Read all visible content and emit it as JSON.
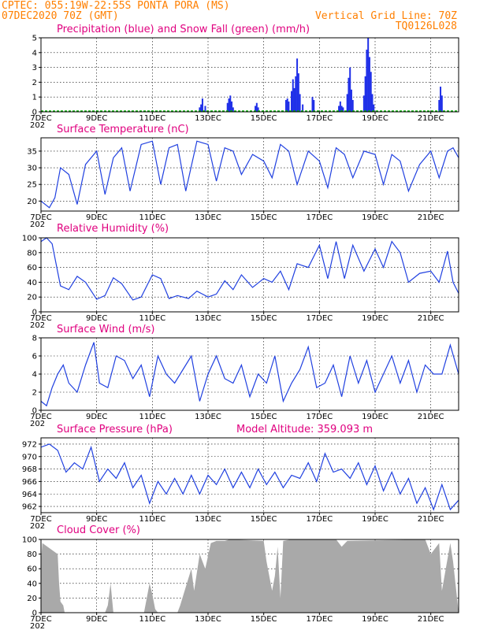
{
  "header": {
    "line1_left": "CPTEC:   055:19W-22:55S  PONTA PORA (MS)",
    "line2_left": "07DEC2020 70Z (GMT)",
    "line2_right": "Vertical Grid Line: 70Z",
    "line3_right": "TQ0126L028"
  },
  "colors": {
    "header": "#ff7f00",
    "title": "#e0007f",
    "line": "#2040e0",
    "bar": "#2030e8",
    "snow": "#00b000",
    "cloud": "#a9a9a9"
  },
  "x_axis": {
    "ticks": [
      "7DEC",
      "9DEC",
      "11DEC",
      "13DEC",
      "15DEC",
      "17DEC",
      "19DEC",
      "21DEC"
    ],
    "start_label_fragment": "202"
  },
  "chart_data": [
    {
      "type": "bar",
      "title": "Precipitation (blue) and Snow Fall (green) (mm/h)",
      "ylim": [
        0,
        5
      ],
      "yticks": [
        "0",
        "1",
        "2",
        "3",
        "4",
        "5"
      ],
      "series": [
        {
          "name": "Precipitation",
          "x": [
            12.7,
            12.75,
            12.8,
            12.9,
            13.7,
            13.75,
            13.8,
            13.85,
            13.9,
            14.7,
            14.75,
            14.8,
            15.8,
            15.85,
            15.9,
            16.0,
            16.05,
            16.1,
            16.15,
            16.2,
            16.25,
            16.3,
            16.4,
            16.75,
            16.8,
            17.7,
            17.75,
            17.8,
            17.85,
            18.0,
            18.05,
            18.1,
            18.15,
            18.2,
            18.6,
            18.65,
            18.7,
            18.75,
            18.8,
            18.85,
            18.9,
            18.95,
            21.3,
            21.35,
            21.4
          ],
          "values": [
            0.3,
            0.5,
            0.9,
            0.4,
            0.6,
            0.9,
            1.1,
            0.7,
            0.3,
            0.4,
            0.6,
            0.3,
            0.8,
            0.9,
            0.7,
            1.4,
            2.2,
            1.6,
            2.4,
            3.6,
            2.6,
            1.2,
            0.5,
            1.0,
            0.8,
            0.4,
            0.7,
            0.4,
            0.3,
            1.2,
            2.3,
            3.0,
            1.5,
            0.8,
            1.1,
            2.4,
            4.2,
            5.0,
            3.7,
            2.7,
            1.2,
            0.5,
            0.8,
            1.7,
            1.1
          ]
        },
        {
          "name": "Snow Fall",
          "x": [],
          "values": []
        }
      ]
    },
    {
      "type": "line",
      "title": "Surface Temperature (nC)",
      "ylim": [
        17,
        39
      ],
      "yticks": [
        "20",
        "25",
        "30",
        "35"
      ],
      "series": [
        {
          "name": "",
          "x": [
            7.0,
            7.3,
            7.5,
            7.7,
            8.0,
            8.3,
            8.6,
            9.0,
            9.3,
            9.6,
            9.9,
            10.2,
            10.6,
            11.0,
            11.3,
            11.6,
            11.9,
            12.2,
            12.6,
            13.0,
            13.3,
            13.6,
            13.9,
            14.2,
            14.6,
            15.0,
            15.3,
            15.6,
            15.9,
            16.2,
            16.6,
            17.0,
            17.3,
            17.6,
            17.9,
            18.2,
            18.6,
            19.0,
            19.3,
            19.6,
            19.9,
            20.2,
            20.6,
            21.0,
            21.3,
            21.6,
            21.8,
            22.0
          ],
          "values": [
            20,
            18,
            21,
            30,
            28,
            19,
            31,
            35,
            22,
            33,
            36,
            23,
            37,
            38,
            25,
            36,
            37,
            23,
            38,
            37,
            26,
            36,
            35,
            28,
            34,
            32,
            27,
            37,
            35,
            25,
            35,
            32,
            24,
            36,
            34,
            27,
            35,
            34,
            25,
            34,
            32,
            23,
            31,
            35,
            27,
            35,
            36,
            33
          ]
        }
      ]
    },
    {
      "type": "line",
      "title": "Relative Humidity (%)",
      "ylim": [
        0,
        100
      ],
      "yticks": [
        "0",
        "20",
        "40",
        "60",
        "80",
        "100"
      ],
      "series": [
        {
          "name": "",
          "x": [
            7.0,
            7.2,
            7.4,
            7.7,
            8.0,
            8.3,
            8.6,
            9.0,
            9.3,
            9.6,
            9.9,
            10.3,
            10.6,
            11.0,
            11.3,
            11.6,
            11.9,
            12.3,
            12.6,
            13.0,
            13.3,
            13.6,
            13.9,
            14.2,
            14.6,
            15.0,
            15.3,
            15.6,
            15.9,
            16.2,
            16.6,
            17.0,
            17.3,
            17.6,
            17.9,
            18.2,
            18.6,
            19.0,
            19.3,
            19.6,
            19.9,
            20.2,
            20.6,
            21.0,
            21.3,
            21.6,
            21.8,
            22.0
          ],
          "values": [
            95,
            100,
            92,
            35,
            30,
            48,
            40,
            17,
            22,
            46,
            38,
            16,
            20,
            50,
            45,
            18,
            22,
            18,
            28,
            20,
            24,
            42,
            30,
            50,
            33,
            45,
            40,
            55,
            30,
            65,
            60,
            90,
            45,
            95,
            45,
            90,
            55,
            85,
            60,
            95,
            80,
            40,
            52,
            55,
            40,
            82,
            40,
            25
          ]
        }
      ]
    },
    {
      "type": "line",
      "title": "Surface Wind (m/s)",
      "ylim": [
        0,
        8
      ],
      "yticks": [
        "0",
        "2",
        "4",
        "6",
        "8"
      ],
      "series": [
        {
          "name": "",
          "x": [
            7.0,
            7.2,
            7.4,
            7.6,
            7.8,
            8.0,
            8.3,
            8.6,
            8.9,
            9.1,
            9.4,
            9.7,
            10.0,
            10.3,
            10.6,
            10.9,
            11.2,
            11.5,
            11.8,
            12.1,
            12.4,
            12.7,
            13.0,
            13.3,
            13.6,
            13.9,
            14.2,
            14.5,
            14.8,
            15.1,
            15.4,
            15.7,
            16.0,
            16.3,
            16.6,
            16.9,
            17.2,
            17.5,
            17.8,
            18.1,
            18.4,
            18.7,
            19.0,
            19.3,
            19.6,
            19.9,
            20.2,
            20.5,
            20.8,
            21.1,
            21.4,
            21.7,
            22.0
          ],
          "values": [
            1,
            0.5,
            2.5,
            4,
            5,
            3,
            2,
            5,
            7.5,
            3,
            2.5,
            6,
            5.5,
            3.5,
            5,
            1.5,
            6,
            4,
            3,
            4.5,
            6,
            1,
            4,
            6,
            3.5,
            3,
            5,
            1.5,
            4,
            3,
            6,
            1,
            3,
            4.5,
            7,
            2.5,
            3,
            5,
            1.5,
            6,
            3,
            5.5,
            2,
            4,
            6,
            3,
            5.5,
            2,
            5,
            4,
            4,
            7.2,
            4
          ]
        }
      ]
    },
    {
      "type": "line",
      "title": "Surface Pressure (hPa)",
      "annotation": "Model Altitude: 359.093 m",
      "ylim": [
        961,
        973
      ],
      "yticks": [
        "962",
        "964",
        "966",
        "968",
        "970",
        "972"
      ],
      "series": [
        {
          "name": "",
          "x": [
            7.0,
            7.3,
            7.6,
            7.9,
            8.2,
            8.5,
            8.8,
            9.1,
            9.4,
            9.7,
            10.0,
            10.3,
            10.6,
            10.9,
            11.2,
            11.5,
            11.8,
            12.1,
            12.4,
            12.7,
            13.0,
            13.3,
            13.6,
            13.9,
            14.2,
            14.5,
            14.8,
            15.1,
            15.4,
            15.7,
            16.0,
            16.3,
            16.6,
            16.9,
            17.2,
            17.5,
            17.8,
            18.1,
            18.4,
            18.7,
            19.0,
            19.3,
            19.6,
            19.9,
            20.2,
            20.5,
            20.8,
            21.1,
            21.4,
            21.7,
            22.0
          ],
          "values": [
            971.5,
            972,
            971,
            967.5,
            969,
            968,
            971.5,
            966,
            968,
            966.5,
            969,
            965,
            967,
            962.5,
            966,
            964,
            966.5,
            964,
            967,
            964,
            967,
            965.5,
            968,
            965,
            967.5,
            965,
            968,
            965.5,
            967.5,
            965,
            967,
            966.5,
            969,
            966,
            970.5,
            967.5,
            968,
            966.5,
            969,
            965.5,
            968.5,
            964.5,
            967.5,
            964,
            966.5,
            962.5,
            965,
            961.5,
            965.5,
            961.5,
            963
          ]
        }
      ]
    },
    {
      "type": "area",
      "title": "Cloud Cover (%)",
      "ylim": [
        0,
        100
      ],
      "yticks": [
        "0",
        "20",
        "40",
        "60",
        "80",
        "100"
      ],
      "series": [
        {
          "name": "",
          "x": [
            7.0,
            7.05,
            7.6,
            7.65,
            7.7,
            7.8,
            7.85,
            9.3,
            9.4,
            9.5,
            9.6,
            10.7,
            10.8,
            10.9,
            11.0,
            11.1,
            11.2,
            11.3,
            11.9,
            12.0,
            12.4,
            12.5,
            12.7,
            12.9,
            13.1,
            13.3,
            13.6,
            13.8,
            15.0,
            15.1,
            15.3,
            15.4,
            15.5,
            15.6,
            15.7,
            16.0,
            17.6,
            17.8,
            18.0,
            20.8,
            21.0,
            21.3,
            21.4,
            21.7,
            21.8,
            22.0
          ],
          "values": [
            70,
            95,
            80,
            40,
            15,
            10,
            0,
            0,
            10,
            40,
            0,
            0,
            20,
            40,
            25,
            5,
            0,
            0,
            0,
            10,
            60,
            30,
            80,
            60,
            95,
            98,
            98,
            100,
            98,
            70,
            30,
            50,
            90,
            20,
            98,
            100,
            100,
            90,
            98,
            100,
            80,
            95,
            30,
            95,
            70,
            0
          ]
        }
      ]
    }
  ]
}
